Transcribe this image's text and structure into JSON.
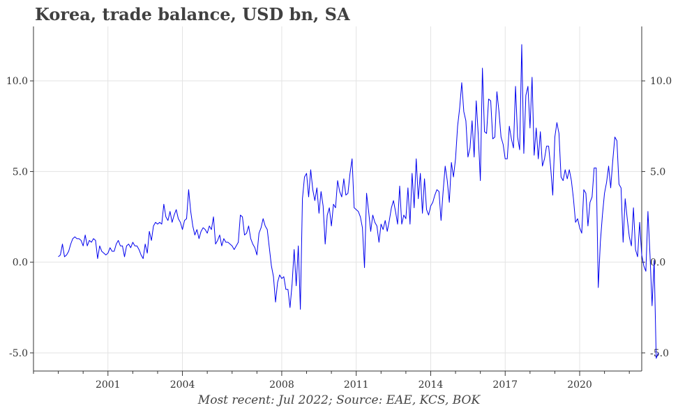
{
  "title": "Korea, trade balance, USD bn, SA",
  "source": "Most recent: Jul 2022; Source: EAE, KCS, BOK",
  "chart_data": {
    "type": "line",
    "title": "Korea, trade balance, USD bn, SA",
    "xlabel": "",
    "ylabel": "",
    "x_range": [
      1998.0,
      2022.5
    ],
    "ylim": [
      -6.0,
      13.0
    ],
    "x_ticks": [
      2001,
      2004,
      2008,
      2011,
      2014,
      2017,
      2020
    ],
    "x_tick_labels": [
      "2001",
      "2004",
      "2008",
      "2011",
      "2014",
      "2017",
      "2020"
    ],
    "y_ticks": [
      -5,
      0,
      5,
      10
    ],
    "y_tick_labels": [
      "-5.0",
      "0.0",
      "5.0",
      "10.0"
    ],
    "grid": true,
    "line_color": "#0000ee",
    "series": [
      {
        "start_year": 1999.0,
        "step_months": 1,
        "values": [
          0.3,
          0.4,
          1.0,
          0.3,
          0.4,
          0.6,
          1.0,
          1.3,
          1.4,
          1.3,
          1.3,
          1.2,
          0.9,
          1.5,
          0.9,
          1.2,
          1.1,
          1.3,
          1.2,
          0.2,
          0.9,
          0.6,
          0.5,
          0.4,
          0.5,
          0.8,
          0.6,
          0.6,
          1.0,
          1.2,
          0.9,
          0.9,
          0.3,
          0.9,
          1.0,
          0.8,
          1.1,
          0.9,
          0.9,
          0.7,
          0.4,
          0.2,
          1.0,
          0.5,
          1.7,
          1.2,
          2.0,
          2.2,
          2.1,
          2.2,
          2.1,
          3.2,
          2.5,
          2.3,
          2.8,
          2.2,
          2.6,
          2.9,
          2.4,
          2.2,
          1.8,
          2.3,
          2.4,
          4.0,
          2.8,
          2.0,
          1.5,
          1.8,
          1.3,
          1.7,
          1.9,
          1.8,
          1.6,
          2.0,
          1.8,
          2.5,
          1.0,
          1.2,
          1.5,
          0.9,
          1.3,
          1.1,
          1.1,
          1.0,
          0.9,
          0.7,
          0.9,
          1.1,
          2.6,
          2.5,
          1.5,
          1.6,
          2.0,
          1.3,
          1.0,
          0.8,
          0.4,
          1.6,
          1.9,
          2.4,
          2.0,
          1.8,
          0.8,
          -0.2,
          -0.8,
          -2.2,
          -1.1,
          -0.7,
          -0.9,
          -0.8,
          -1.5,
          -1.5,
          -2.5,
          -1.2,
          0.7,
          -1.3,
          0.9,
          -2.6,
          3.5,
          4.7,
          4.9,
          3.6,
          5.1,
          4.0,
          3.4,
          4.1,
          2.7,
          3.9,
          3.1,
          1.0,
          2.6,
          3.0,
          2.0,
          3.2,
          3.0,
          4.5,
          3.9,
          3.6,
          4.6,
          3.7,
          3.8,
          4.9,
          5.7,
          3.0,
          2.9,
          2.8,
          2.5,
          1.9,
          -0.3,
          3.8,
          2.8,
          1.7,
          2.6,
          2.2,
          2.0,
          1.1,
          2.1,
          1.8,
          2.3,
          1.7,
          2.3,
          3.0,
          3.4,
          2.8,
          2.1,
          4.2,
          2.1,
          2.6,
          2.4,
          4.1,
          2.1,
          4.9,
          3.0,
          5.7,
          3.5,
          4.9,
          2.7,
          4.6,
          2.9,
          2.6,
          3.1,
          3.3,
          3.7,
          4.0,
          3.9,
          2.3,
          3.9,
          5.3,
          4.5,
          3.3,
          5.5,
          4.7,
          5.7,
          7.5,
          8.5,
          9.9,
          8.3,
          7.8,
          5.8,
          6.3,
          7.8,
          5.8,
          8.9,
          7.0,
          4.5,
          10.7,
          7.2,
          7.1,
          9.0,
          8.9,
          6.8,
          6.9,
          9.4,
          8.3,
          6.9,
          6.5,
          5.7,
          5.7,
          7.5,
          6.8,
          6.3,
          9.7,
          6.9,
          6.2,
          12.0,
          6.0,
          9.2,
          9.7,
          7.4,
          10.2,
          5.9,
          7.4,
          5.7,
          7.2,
          5.3,
          5.7,
          6.4,
          6.4,
          5.2,
          3.7,
          6.9,
          7.7,
          7.1,
          4.7,
          4.5,
          5.1,
          4.6,
          5.1,
          4.5,
          3.5,
          2.2,
          2.4,
          1.9,
          1.6,
          4.0,
          3.8,
          2.0,
          3.3,
          3.6,
          5.2,
          5.2,
          -1.4,
          1.1,
          2.6,
          3.8,
          4.4,
          5.3,
          4.1,
          5.6,
          6.9,
          6.7,
          4.3,
          4.1,
          1.1,
          3.5,
          2.4,
          1.4,
          0.9,
          3.0,
          0.7,
          0.3,
          2.2,
          0.4,
          -0.2,
          -0.5,
          2.8,
          0.4,
          -2.4,
          0.1,
          -5.3,
          -5.0
        ]
      }
    ]
  }
}
